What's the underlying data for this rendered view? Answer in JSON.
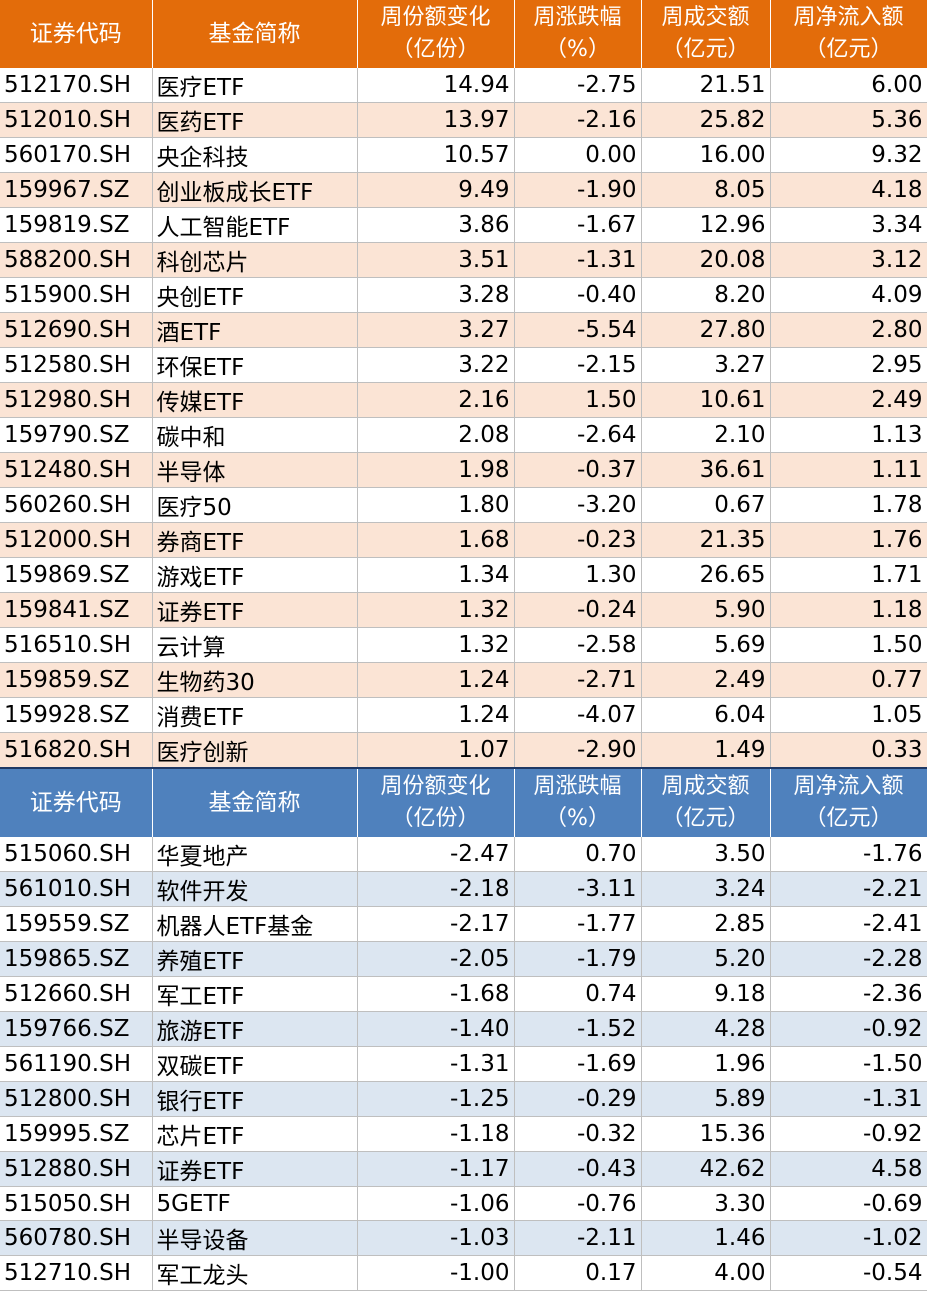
{
  "headers": {
    "code": "证券代码",
    "name": "基金简称",
    "share_change": [
      "周份额变化",
      "（亿份）"
    ],
    "price_change": [
      "周涨跌幅",
      "（%）"
    ],
    "turnover": [
      "周成交额",
      "（亿元）"
    ],
    "net_inflow": [
      "周净流入额",
      "（亿元）"
    ]
  },
  "inflow_table": [
    [
      "512170.SH",
      "医疗ETF",
      "14.94",
      "-2.75",
      "21.51",
      "6.00"
    ],
    [
      "512010.SH",
      "医药ETF",
      "13.97",
      "-2.16",
      "25.82",
      "5.36"
    ],
    [
      "560170.SH",
      "央企科技",
      "10.57",
      "0.00",
      "16.00",
      "9.32"
    ],
    [
      "159967.SZ",
      "创业板成长ETF",
      "9.49",
      "-1.90",
      "8.05",
      "4.18"
    ],
    [
      "159819.SZ",
      "人工智能ETF",
      "3.86",
      "-1.67",
      "12.96",
      "3.34"
    ],
    [
      "588200.SH",
      "科创芯片",
      "3.51",
      "-1.31",
      "20.08",
      "3.12"
    ],
    [
      "515900.SH",
      "央创ETF",
      "3.28",
      "-0.40",
      "8.20",
      "4.09"
    ],
    [
      "512690.SH",
      "酒ETF",
      "3.27",
      "-5.54",
      "27.80",
      "2.80"
    ],
    [
      "512580.SH",
      "环保ETF",
      "3.22",
      "-2.15",
      "3.27",
      "2.95"
    ],
    [
      "512980.SH",
      "传媒ETF",
      "2.16",
      "1.50",
      "10.61",
      "2.49"
    ],
    [
      "159790.SZ",
      "碳中和",
      "2.08",
      "-2.64",
      "2.10",
      "1.13"
    ],
    [
      "512480.SH",
      "半导体",
      "1.98",
      "-0.37",
      "36.61",
      "1.11"
    ],
    [
      "560260.SH",
      "医疗50",
      "1.80",
      "-3.20",
      "0.67",
      "1.78"
    ],
    [
      "512000.SH",
      "券商ETF",
      "1.68",
      "-0.23",
      "21.35",
      "1.76"
    ],
    [
      "159869.SZ",
      "游戏ETF",
      "1.34",
      "1.30",
      "26.65",
      "1.71"
    ],
    [
      "159841.SZ",
      "证券ETF",
      "1.32",
      "-0.24",
      "5.90",
      "1.18"
    ],
    [
      "516510.SH",
      "云计算",
      "1.32",
      "-2.58",
      "5.69",
      "1.50"
    ],
    [
      "159859.SZ",
      "生物药30",
      "1.24",
      "-2.71",
      "2.49",
      "0.77"
    ],
    [
      "159928.SZ",
      "消费ETF",
      "1.24",
      "-4.07",
      "6.04",
      "1.05"
    ],
    [
      "516820.SH",
      "医疗创新",
      "1.07",
      "-2.90",
      "1.49",
      "0.33"
    ]
  ],
  "outflow_table": [
    [
      "515060.SH",
      "华夏地产",
      "-2.47",
      "0.70",
      "3.50",
      "-1.76"
    ],
    [
      "561010.SH",
      "软件开发",
      "-2.18",
      "-3.11",
      "3.24",
      "-2.21"
    ],
    [
      "159559.SZ",
      "机器人ETF基金",
      "-2.17",
      "-1.77",
      "2.85",
      "-2.41"
    ],
    [
      "159865.SZ",
      "养殖ETF",
      "-2.05",
      "-1.79",
      "5.20",
      "-2.28"
    ],
    [
      "512660.SH",
      "军工ETF",
      "-1.68",
      "0.74",
      "9.18",
      "-2.36"
    ],
    [
      "159766.SZ",
      "旅游ETF",
      "-1.40",
      "-1.52",
      "4.28",
      "-0.92"
    ],
    [
      "561190.SH",
      "双碳ETF",
      "-1.31",
      "-1.69",
      "1.96",
      "-1.50"
    ],
    [
      "512800.SH",
      "银行ETF",
      "-1.25",
      "-0.29",
      "5.89",
      "-1.31"
    ],
    [
      "159995.SZ",
      "芯片ETF",
      "-1.18",
      "-0.32",
      "15.36",
      "-0.92"
    ],
    [
      "512880.SH",
      "证券ETF",
      "-1.17",
      "-0.43",
      "42.62",
      "4.58"
    ],
    [
      "515050.SH",
      "5GETF",
      "-1.06",
      "-0.76",
      "3.30",
      "-0.69"
    ],
    [
      "560780.SH",
      "半导设备",
      "-1.03",
      "-2.11",
      "1.46",
      "-1.02"
    ],
    [
      "512710.SH",
      "军工龙头",
      "-1.00",
      "0.17",
      "4.00",
      "-0.54"
    ]
  ],
  "colors": {
    "top_header": "#e36c0a",
    "top_stripe": "#fbe4d5",
    "bottom_header": "#4f81bd",
    "bottom_stripe": "#dce6f1"
  }
}
